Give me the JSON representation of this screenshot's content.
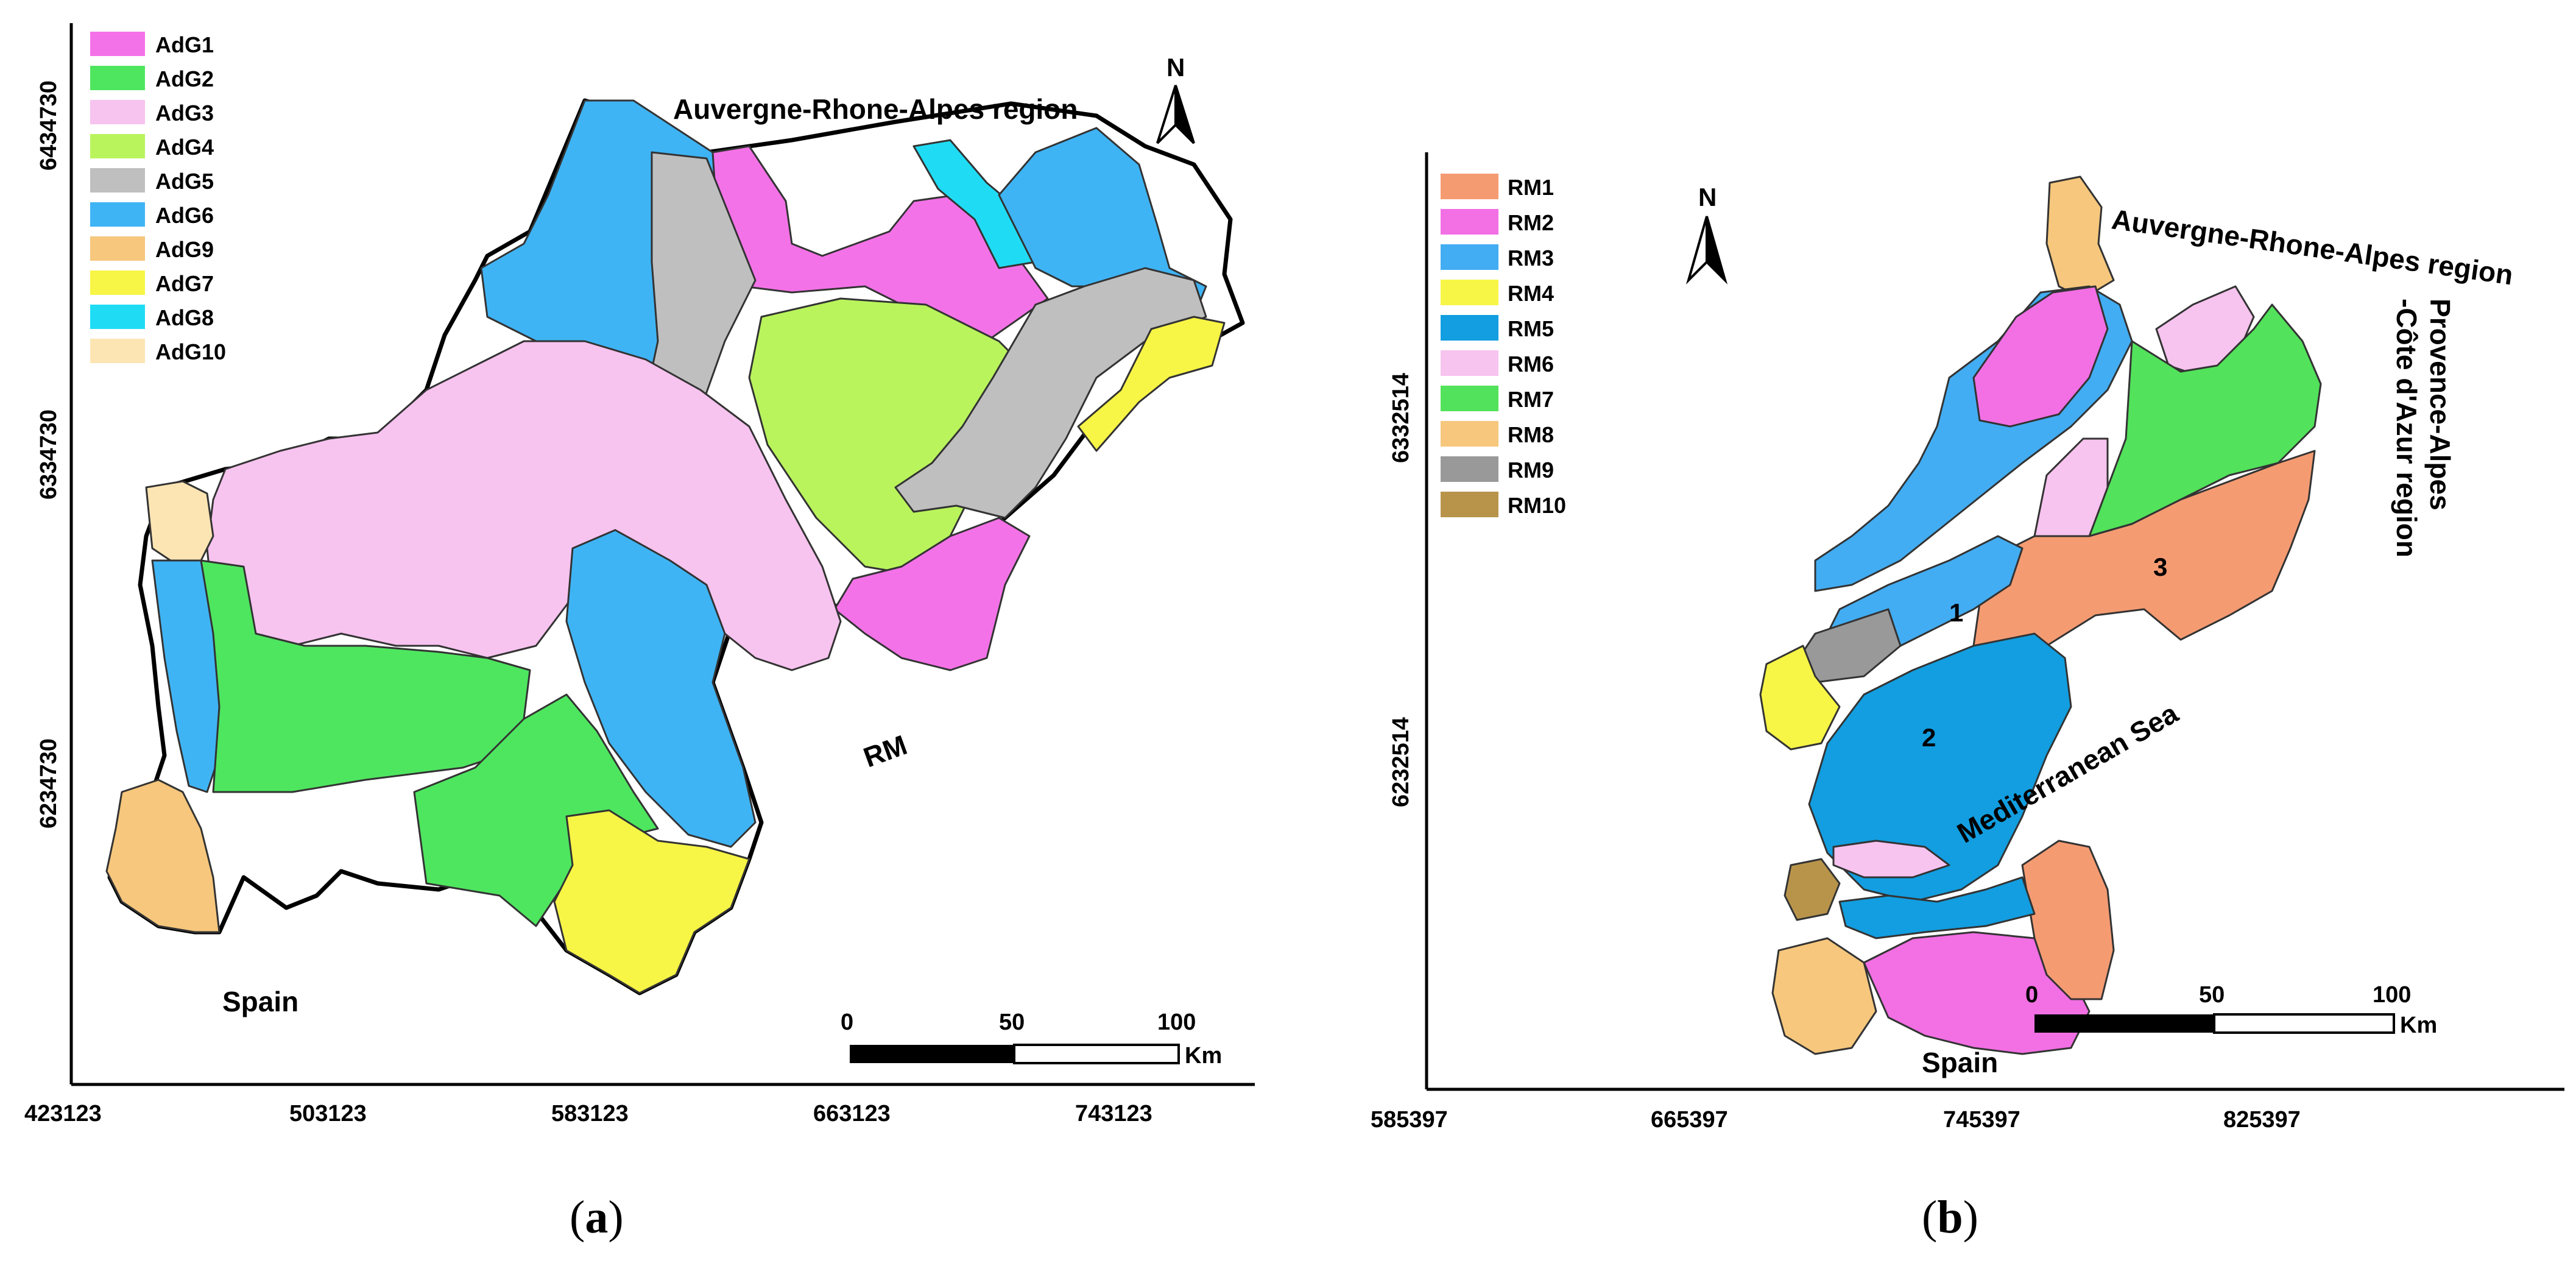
{
  "panel_a": {
    "caption": "a",
    "legend": [
      {
        "label": "AdG1",
        "color": "#f472e8"
      },
      {
        "label": "AdG2",
        "color": "#4ee65f"
      },
      {
        "label": "AdG3",
        "color": "#f7c3ef"
      },
      {
        "label": "AdG4",
        "color": "#b9f45c"
      },
      {
        "label": "AdG5",
        "color": "#bfbfbf"
      },
      {
        "label": "AdG6",
        "color": "#3fb4f5"
      },
      {
        "label": "AdG9",
        "color": "#f6c77c"
      },
      {
        "label": "AdG7",
        "color": "#f7f545"
      },
      {
        "label": "AdG8",
        "color": "#1fdcf4"
      },
      {
        "label": "AdG10",
        "color": "#fde5b3"
      }
    ],
    "x_ticks": [
      "423123",
      "503123",
      "583123",
      "663123",
      "743123"
    ],
    "y_ticks": [
      "6434730",
      "6334730",
      "6234730"
    ],
    "labels": {
      "north": "N",
      "north_region": "Auvergne-Rhone-Alpes region",
      "spain": "Spain",
      "rm": "RM"
    },
    "scale": {
      "ticks": [
        "0",
        "50",
        "100"
      ],
      "unit": "Km"
    }
  },
  "panel_b": {
    "caption": "b",
    "legend": [
      {
        "label": "RM1",
        "color": "#f59b72"
      },
      {
        "label": "RM2",
        "color": "#f26fe4"
      },
      {
        "label": "RM3",
        "color": "#42adf3"
      },
      {
        "label": "RM4",
        "color": "#f7f545"
      },
      {
        "label": "RM5",
        "color": "#129ee0"
      },
      {
        "label": "RM6",
        "color": "#f7c3ef"
      },
      {
        "label": "RM7",
        "color": "#52e25b"
      },
      {
        "label": "RM8",
        "color": "#f6c77c"
      },
      {
        "label": "RM9",
        "color": "#999999"
      },
      {
        "label": "RM10",
        "color": "#b8944b"
      }
    ],
    "x_ticks": [
      "585397",
      "665397",
      "745397",
      "825397"
    ],
    "y_ticks": [
      "6332514",
      "6232514"
    ],
    "labels": {
      "north": "N",
      "north_region": "Auvergne-Rhone-Alpes region",
      "east_region_line1": "Provence-Alpes",
      "east_region_line2": "-Côte d'Azur region",
      "sea": "Mediterranean Sea",
      "spain": "Spain",
      "zone1": "1",
      "zone2": "2",
      "zone3": "3"
    },
    "scale": {
      "ticks": [
        "0",
        "50",
        "100"
      ],
      "unit": "Km"
    }
  },
  "captions": {
    "open": "(",
    "close": ")"
  }
}
